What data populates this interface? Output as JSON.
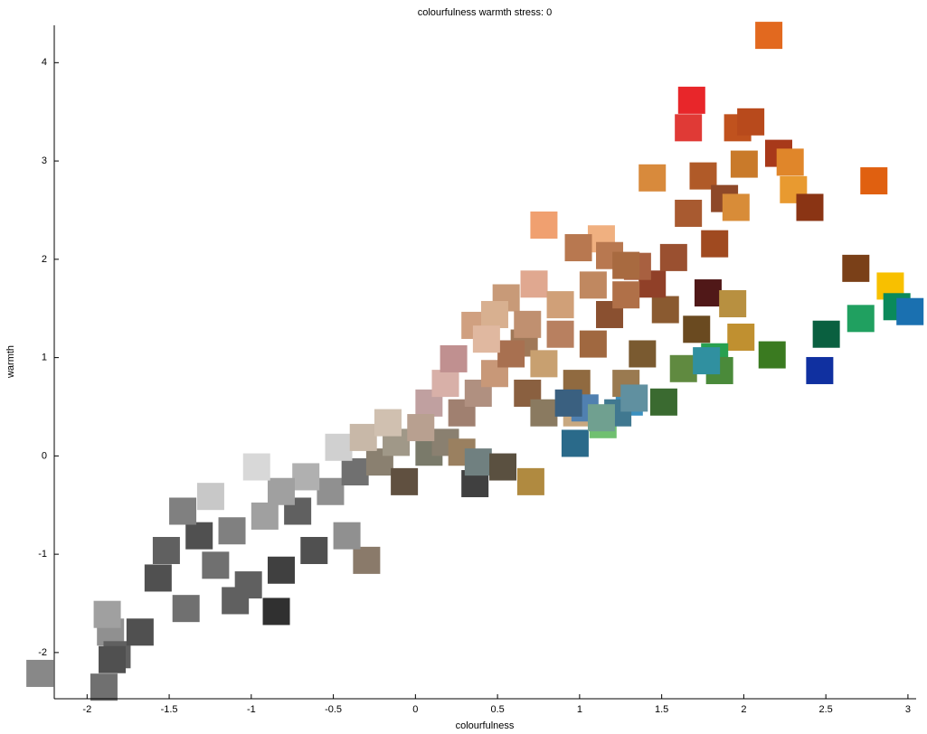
{
  "chart_data": {
    "type": "scatter",
    "title": "colourfulness  warmth stress: 0",
    "xlabel": "colourfulness",
    "ylabel": "warmth",
    "xlim": [
      -2.2,
      3.05
    ],
    "ylim": [
      -2.47,
      4.38
    ],
    "xticks": [
      -2,
      -1.5,
      -1,
      -0.5,
      0,
      0.5,
      1,
      1.5,
      2,
      2.5,
      3
    ],
    "yticks": [
      -2,
      -1,
      0,
      1,
      2,
      3,
      4
    ],
    "x": [
      2.07,
      1.6,
      1.58,
      1.88,
      1.96,
      2.13,
      1.92,
      2.2,
      2.22,
      1.36,
      1.67,
      2.71,
      2.32,
      1.58,
      1.8,
      1.87,
      1.74,
      0.7,
      2.6,
      2.81,
      2.85,
      2.93,
      2.63,
      2.42,
      2.38,
      2.09,
      1.7,
      1.85,
      1.44,
      1.63,
      1.9,
      1.74,
      1.55,
      1.43,
      1.77,
      1.69,
      1.36,
      1.49,
      1.27,
      1.05,
      0.91,
      0.64,
      0.47,
      0.28,
      0.58,
      0.89,
      1.06,
      1.22,
      0.62,
      0.28,
      -0.38,
      -0.93,
      -1.18,
      -1.48,
      -1.65,
      -1.33,
      -1.94,
      -1.9,
      -1.76,
      -2.37,
      -1.98,
      -1.96,
      -1.93,
      -1.2,
      -1.0,
      -0.8,
      -0.6,
      -0.45,
      -0.3,
      -0.7,
      -0.9,
      -1.3,
      -1.1,
      -0.5,
      -0.75,
      -0.55,
      -0.4,
      -0.2,
      -0.15,
      0.0,
      0.1,
      0.2,
      -1.4,
      -1.6,
      -1.5,
      -0.9,
      -1.05,
      0.3,
      0.45,
      0.0,
      0.1,
      0.2,
      0.3,
      0.4,
      0.5,
      0.6,
      0.7,
      0.8,
      0.9,
      1.0,
      1.1,
      1.2,
      1.0,
      0.8,
      0.6,
      0.4,
      1.3,
      1.2,
      0.9,
      0.7,
      1.1,
      1.2,
      0.35,
      -0.05,
      -0.25,
      0.15,
      0.95,
      1.15,
      1.25,
      1.05,
      0.85
    ],
    "values": [
      4.14,
      3.48,
      3.2,
      3.2,
      3.26,
      2.94,
      2.83,
      2.85,
      2.57,
      2.69,
      2.71,
      2.66,
      2.39,
      2.33,
      2.48,
      2.39,
      2.02,
      2.21,
      1.77,
      1.59,
      1.38,
      1.33,
      1.26,
      1.1,
      0.73,
      0.89,
      1.52,
      1.41,
      1.35,
      1.15,
      1.07,
      0.87,
      0.75,
      0.41,
      0.73,
      0.83,
      1.61,
      1.88,
      1.79,
      2.07,
      1.98,
      1.61,
      1.47,
      1.19,
      1.01,
      -0.01,
      0.18,
      0.41,
      -0.4,
      -0.42,
      -1.2,
      -1.72,
      -1.61,
      -1.69,
      -1.38,
      -0.55,
      -1.93,
      -2.16,
      -1.93,
      -2.35,
      -2.49,
      -1.75,
      -2.21,
      -0.9,
      -0.75,
      -0.7,
      -0.5,
      -0.3,
      -0.2,
      -1.1,
      -1.3,
      -1.25,
      -1.45,
      -0.95,
      -0.35,
      -0.05,
      0.05,
      0.0,
      -0.4,
      -0.1,
      0.0,
      -0.1,
      -0.95,
      -1.1,
      -0.7,
      -0.5,
      -0.25,
      -0.2,
      -0.25,
      0.4,
      0.6,
      0.3,
      0.5,
      0.7,
      0.9,
      0.5,
      0.8,
      1.1,
      0.6,
      1.0,
      1.3,
      1.5,
      1.6,
      1.4,
      1.2,
      1.3,
      0.9,
      0.6,
      0.3,
      0.3,
      1.9,
      1.8,
      1.05,
      0.15,
      0.2,
      0.85,
      0.35,
      0.3,
      0.45,
      0.25,
      0.4
    ],
    "colors": [
      "#e2691f",
      "#e8262a",
      "#e03a36",
      "#c0521e",
      "#b84a1c",
      "#a8391a",
      "#c97a2a",
      "#e0862a",
      "#e89a30",
      "#d88a3c",
      "#b05a28",
      "#e06010",
      "#8a3414",
      "#a85a30",
      "#8e4828",
      "#d88c38",
      "#a04a20",
      "#f0a070",
      "#7a4018",
      "#f8c000",
      "#0a8a5a",
      "#1a70b0",
      "#20a060",
      "#0a6040",
      "#1030a0",
      "#3a7a20",
      "#501818",
      "#b89040",
      "#8a5a30",
      "#6a4a20",
      "#c09030",
      "#28a050",
      "#608a40",
      "#3a6a30",
      "#4a8a3a",
      "#3090a0",
      "#904028",
      "#9a5030",
      "#a86040",
      "#f0b080",
      "#b87850",
      "#e0a890",
      "#c89a78",
      "#d0a080",
      "#a07858",
      "#2a6a8a",
      "#70c070",
      "#3a90c0",
      "#b08a40",
      "#404040",
      "#8a7a6a",
      "#303030",
      "#606060",
      "#707070",
      "#505050",
      "#c8c8c8",
      "#909090",
      "#606060",
      "#505050",
      "#888888",
      "#707070",
      "#a0a0a0",
      "#505050",
      "#808080",
      "#a0a0a0",
      "#606060",
      "#909090",
      "#707070",
      "#8a8070",
      "#505050",
      "#404040",
      "#707070",
      "#606060",
      "#909090",
      "#b0b0b0",
      "#d0d0d0",
      "#c8b8a8",
      "#a09888",
      "#605040",
      "#7a7a6a",
      "#8a8070",
      "#9a8060",
      "#505050",
      "#606060",
      "#808080",
      "#a0a0a0",
      "#d8d8d8",
      "#708080",
      "#5a5040",
      "#c0a0a0",
      "#d8b0a8",
      "#a08070",
      "#b09080",
      "#c89878",
      "#a87050",
      "#8a6040",
      "#c8a070",
      "#b88060",
      "#906a40",
      "#a06840",
      "#8a5030",
      "#b07048",
      "#c08860",
      "#d0a078",
      "#c09070",
      "#d8b090",
      "#7a5a30",
      "#9a7a50",
      "#c8a880",
      "#8a7a60",
      "#b87850",
      "#a86a40",
      "#e0b8a0",
      "#b8a090",
      "#d0c0b0",
      "#c09090",
      "#5080b0",
      "#407890",
      "#6090a0",
      "#70a090",
      "#3a6080"
    ]
  }
}
